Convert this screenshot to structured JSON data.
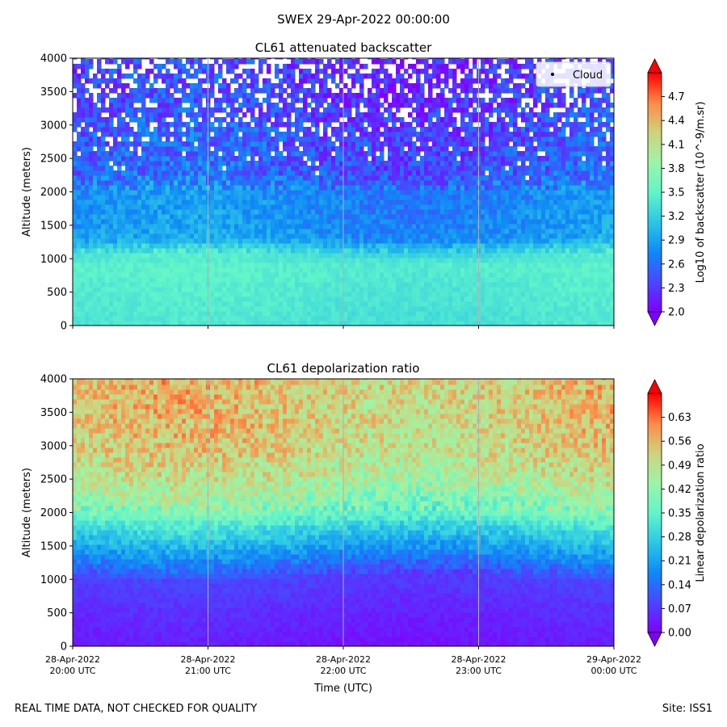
{
  "suptitle": "SWEX 29-Apr-2022 00:00:00",
  "footer": {
    "left": "REAL TIME DATA, NOT CHECKED FOR QUALITY",
    "right": "Site: ISS1"
  },
  "chart_data": [
    {
      "type": "heatmap",
      "title": "CL61 attenuated backscatter",
      "xlabel": "",
      "ylabel": "Altitude (meters)",
      "ylim": [
        0,
        4000
      ],
      "yticks": [
        0,
        500,
        1000,
        1500,
        2000,
        2500,
        3000,
        3500,
        4000
      ],
      "xticks": [
        "28-Apr-2022\n20:00 UTC",
        "28-Apr-2022\n21:00 UTC",
        "28-Apr-2022\n22:00 UTC",
        "28-Apr-2022\n23:00 UTC",
        "29-Apr-2022\n00:00 UTC"
      ],
      "show_xtick_labels": false,
      "grid_x": true,
      "legend": {
        "entries": [
          "Cloud"
        ],
        "location": "top-right"
      },
      "colorbar": {
        "label": "Log10 of backscatter (10^-9/m.sr)",
        "range": [
          2.0,
          5.0
        ],
        "ticks": [
          "2.0",
          "2.3",
          "2.6",
          "2.9",
          "3.2",
          "3.5",
          "3.8",
          "4.1",
          "4.4",
          "4.7"
        ],
        "colormap": "rainbow"
      },
      "profile": {
        "altitudes": [
          0,
          500,
          900,
          1100,
          1300,
          1600,
          2000,
          2300,
          2800,
          3300,
          4000
        ],
        "values": [
          3.35,
          3.4,
          3.45,
          3.3,
          2.85,
          2.8,
          2.75,
          2.5,
          2.45,
          2.35,
          2.3
        ]
      }
    },
    {
      "type": "heatmap",
      "title": "CL61 depolarization ratio",
      "xlabel": "Time (UTC)",
      "ylabel": "Altitude (meters)",
      "ylim": [
        0,
        4000
      ],
      "yticks": [
        0,
        500,
        1000,
        1500,
        2000,
        2500,
        3000,
        3500,
        4000
      ],
      "xticks": [
        "28-Apr-2022\n20:00 UTC",
        "28-Apr-2022\n21:00 UTC",
        "28-Apr-2022\n22:00 UTC",
        "28-Apr-2022\n23:00 UTC",
        "29-Apr-2022\n00:00 UTC"
      ],
      "show_xtick_labels": true,
      "grid_x": true,
      "colorbar": {
        "label": "Linear depolarization ratio",
        "range": [
          0.0,
          0.7
        ],
        "ticks": [
          "0.00",
          "0.07",
          "0.14",
          "0.21",
          "0.28",
          "0.35",
          "0.42",
          "0.49",
          "0.56",
          "0.63"
        ],
        "colormap": "rainbow"
      },
      "profile": {
        "altitudes": [
          0,
          500,
          1000,
          1200,
          1500,
          1800,
          2000,
          2500,
          3000,
          4000
        ],
        "values": [
          0.03,
          0.05,
          0.08,
          0.13,
          0.22,
          0.3,
          0.38,
          0.47,
          0.52,
          0.54
        ]
      }
    }
  ]
}
